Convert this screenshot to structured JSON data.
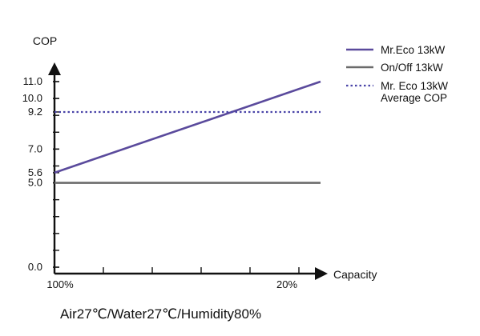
{
  "chart_data": {
    "type": "line",
    "title": "",
    "xlabel": "Capacity",
    "ylabel": "COP",
    "xlim": [
      100,
      20
    ],
    "ylim": [
      0,
      12
    ],
    "x_tick_labels": [
      "100%",
      "20%"
    ],
    "y_ticks": [
      0.0,
      5.0,
      5.6,
      7.0,
      9.2,
      10.0,
      11.0
    ],
    "y_tick_labels": [
      "0.0",
      "5.0",
      "5.6",
      "7.0",
      "9.2",
      "10.0",
      "11.0"
    ],
    "grid": false,
    "legend_position": "top-right",
    "series": [
      {
        "name": "Mr.Eco 13kW",
        "x": [
          100,
          20
        ],
        "y": [
          5.6,
          11.0
        ],
        "color": "#5a4a9c",
        "style": "solid"
      },
      {
        "name": "On/Off 13kW",
        "x": [
          100,
          20
        ],
        "y": [
          5.0,
          5.0
        ],
        "color": "#6b6b6b",
        "style": "solid"
      },
      {
        "name": "Mr. Eco 13kW Average COP",
        "x": [
          100,
          20
        ],
        "y": [
          9.2,
          9.2
        ],
        "color": "#4a44a8",
        "style": "dotted"
      }
    ],
    "legend": [
      {
        "lines": [
          "Mr.Eco 13kW"
        ],
        "color": "#5a4a9c",
        "style": "solid"
      },
      {
        "lines": [
          "On/Off 13kW"
        ],
        "color": "#6b6b6b",
        "style": "solid"
      },
      {
        "lines": [
          "Mr. Eco 13kW",
          "Average COP"
        ],
        "color": "#4a44a8",
        "style": "dotted"
      }
    ],
    "caption": "Air27℃/Water27℃/Humidity80%"
  }
}
